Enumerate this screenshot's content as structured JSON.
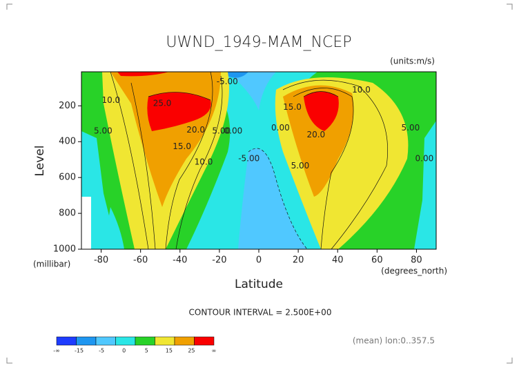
{
  "chart_data": {
    "type": "contour",
    "title": "UWND_1949-MAM_NCEP",
    "units": "(units:m/s)",
    "x_label": "Latitude",
    "x_units": "(degrees_north)",
    "y_label": "Level",
    "y_units": "(millibar)",
    "xlim": [
      -90,
      90
    ],
    "xticks": [
      -80,
      -60,
      -40,
      -20,
      0,
      20,
      40,
      60,
      80
    ],
    "ylim": [
      1000,
      10
    ],
    "yticks": [
      200,
      400,
      600,
      800,
      1000
    ],
    "contour_interval": "CONTOUR INTERVAL = 2.500E+00",
    "footer": "(mean) lon:0..357.5",
    "colorbar": {
      "labels": [
        "-∞",
        "-15",
        "-5",
        "0",
        "5",
        "15",
        "25",
        "∞"
      ],
      "colors": [
        "#1e3cff",
        "#1e96f0",
        "#50c8ff",
        "#2ae6e6",
        "#28d228",
        "#f0e632",
        "#f0a000",
        "#fa0000"
      ]
    },
    "contour_labels": [
      {
        "value": 10,
        "label": "10.0",
        "lat": -75,
        "level": 169
      },
      {
        "value": 5,
        "label": "5.00",
        "lat": -79,
        "level": 342
      },
      {
        "value": 25,
        "label": "25.0",
        "lat": -49,
        "level": 188
      },
      {
        "value": 20,
        "label": "20.0",
        "lat": -32,
        "level": 335
      },
      {
        "value": 15,
        "label": "15.0",
        "lat": -39,
        "level": 427
      },
      {
        "value": 10,
        "label": "10.0",
        "lat": -28,
        "level": 515
      },
      {
        "value": -5,
        "label": "-5.00",
        "lat": -16,
        "level": 65
      },
      {
        "value": 5,
        "label": "5.00",
        "lat": -19,
        "level": 342
      },
      {
        "value": 0,
        "label": "0.00",
        "lat": -13,
        "level": 342
      },
      {
        "value": -5,
        "label": "-5.00",
        "lat": -5,
        "level": 496
      },
      {
        "value": 0,
        "label": "0.00",
        "lat": 11,
        "level": 323
      },
      {
        "value": 15,
        "label": "15.0",
        "lat": 17,
        "level": 208
      },
      {
        "value": 20,
        "label": "20.0",
        "lat": 29,
        "level": 362
      },
      {
        "value": 5,
        "label": "5.00",
        "lat": 21,
        "level": 535
      },
      {
        "value": 10,
        "label": "10.0",
        "lat": 52,
        "level": 112
      },
      {
        "value": 5,
        "label": "5.00",
        "lat": 77,
        "level": 323
      },
      {
        "value": 0,
        "label": "0.00",
        "lat": 84,
        "level": 496
      }
    ]
  }
}
